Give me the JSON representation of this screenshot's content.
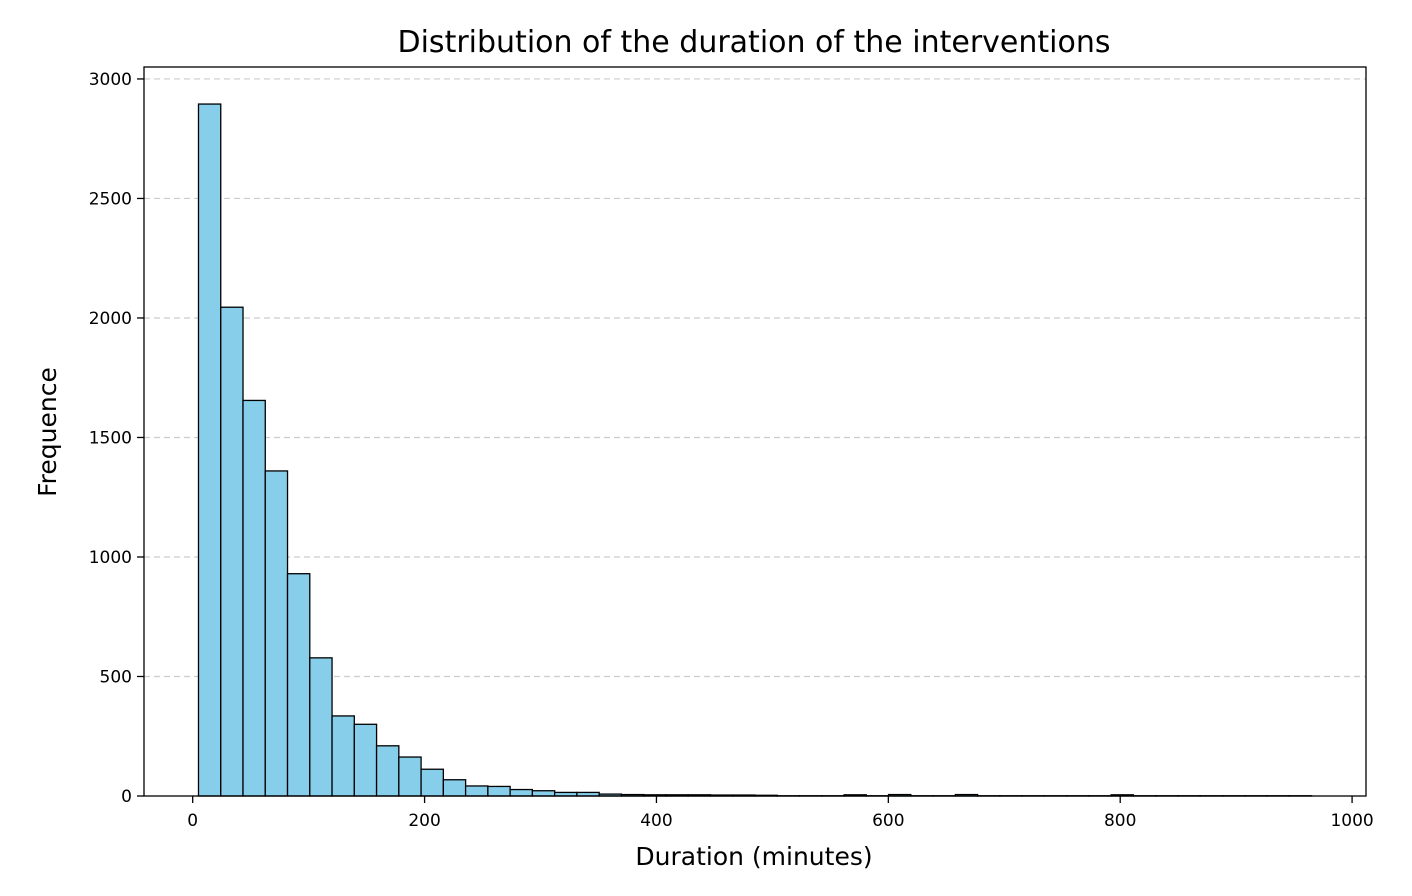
{
  "chart_data": {
    "type": "bar",
    "title": "Distribution of the duration of the interventions",
    "xlabel": "Duration (minutes)",
    "ylabel": "Frequence",
    "xlim": [
      -42,
      1012
    ],
    "ylim": [
      0,
      3050
    ],
    "x_ticks": [
      0,
      200,
      400,
      600,
      800,
      1000
    ],
    "y_ticks": [
      0,
      500,
      1000,
      1500,
      2000,
      2500,
      3000
    ],
    "grid": "y-dashed",
    "colors": {
      "bar_fill": "#87ceeb",
      "bar_edge": "#000000",
      "grid": "#cccccc"
    },
    "series": [
      {
        "bin_width": 19.2,
        "bin_starts": [
          5,
          24.2,
          43.4,
          62.6,
          81.8,
          101,
          120.2,
          139.4,
          158.6,
          177.8,
          197,
          216.2,
          235.4,
          254.6,
          273.8,
          293,
          312.2,
          331.4,
          350.6,
          369.8,
          389,
          408.2,
          427.4,
          446.6,
          465.8,
          485,
          504.2,
          523.4,
          542.6,
          561.8,
          581,
          600.2,
          619.4,
          638.6,
          657.8,
          677,
          696.2,
          715.4,
          734.6,
          753.8,
          773,
          792.2,
          811.4,
          830.6,
          849.8,
          869,
          888.2,
          907.4,
          926.6,
          945.8
        ],
        "values": [
          2895,
          2045,
          1655,
          1360,
          930,
          578,
          335,
          300,
          210,
          163,
          112,
          68,
          42,
          40,
          27,
          22,
          15,
          15,
          8,
          6,
          5,
          5,
          5,
          4,
          4,
          3,
          1,
          1,
          1,
          5,
          1,
          6,
          1,
          1,
          6,
          1,
          1,
          1,
          1,
          1,
          1,
          5,
          1,
          1,
          1,
          1,
          1,
          1,
          1,
          1
        ]
      }
    ]
  }
}
